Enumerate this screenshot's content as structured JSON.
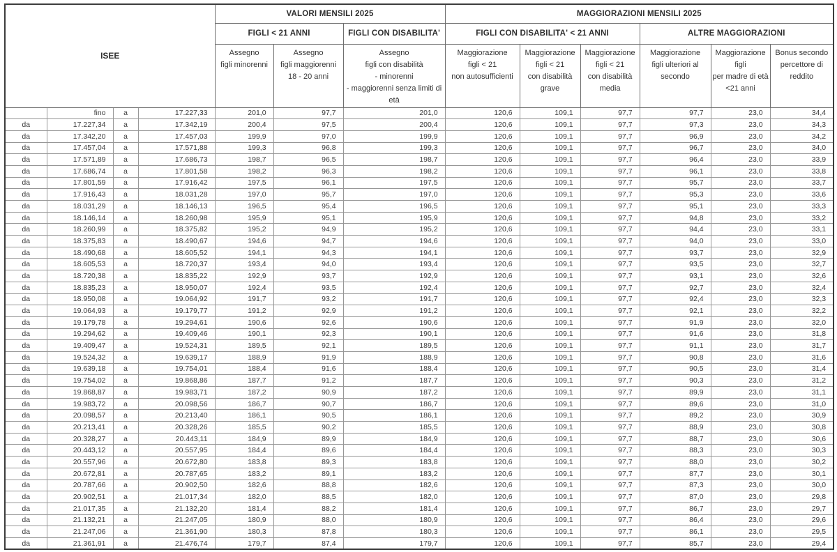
{
  "header": {
    "isee": "ISEE",
    "valori_mensili": "VALORI MENSILI 2025",
    "maggiorazioni_mensili": "MAGGIORAZIONI MENSILI 2025",
    "figli_under_21": "FIGLI < 21 ANNI",
    "figli_con_disabilita": "FIGLI CON DISABILITA'",
    "figli_con_disabilita_under_21": "FIGLI CON DISABILITA' < 21 ANNI",
    "altre_maggiorazioni": "ALTRE MAGGIORAZIONI",
    "columns": [
      "Assegno\nfigli minorenni",
      "Assegno\nfigli  maggiorenni\n18 -  20 anni",
      "Assegno\nfigli con disabilità\n- minorenni\n- maggiorenni senza limiti di\netà",
      "Maggiorazione\nfigli  < 21\nnon autosufficienti",
      "Maggiorazione\nfigli < 21\ncon disabilità\ngrave",
      "Maggiorazione\nfigli < 21\ncon disabilità\nmedia",
      "Maggiorazione\nfigli ulteriori al\nsecondo",
      "Maggiorazione\nfigli\nper madre di età\n<21 anni",
      "Bonus secondo\npercettore di\nreddito"
    ]
  },
  "table": {
    "col_names": [
      "cell-da",
      "cell-isee-from",
      "cell-a",
      "cell-isee-to",
      "cell-assegno-minorenni",
      "cell-assegno-maggiorenni",
      "cell-assegno-disabilita",
      "cell-magg-non-autosufficienti",
      "cell-magg-disabilita-grave",
      "cell-magg-disabilita-media",
      "cell-magg-figli-ulteriori",
      "cell-magg-madre-under21",
      "cell-bonus-secondo-percettore"
    ],
    "col_classes": [
      "c-center",
      "c-num",
      "c-center",
      "c-num",
      "c-num",
      "c-num",
      "c-num",
      "c-num",
      "c-num",
      "c-num",
      "c-num",
      "c-num",
      "c-num"
    ],
    "rows": [
      [
        "",
        "fino",
        "a",
        "17.227,33",
        "201,0",
        "97,7",
        "201,0",
        "120,6",
        "109,1",
        "97,7",
        "97,7",
        "23,0",
        "34,4"
      ],
      [
        "da",
        "17.227,34",
        "a",
        "17.342,19",
        "200,4",
        "97,5",
        "200,4",
        "120,6",
        "109,1",
        "97,7",
        "97,3",
        "23,0",
        "34,3"
      ],
      [
        "da",
        "17.342,20",
        "a",
        "17.457,03",
        "199,9",
        "97,0",
        "199,9",
        "120,6",
        "109,1",
        "97,7",
        "96,9",
        "23,0",
        "34,2"
      ],
      [
        "da",
        "17.457,04",
        "a",
        "17.571,88",
        "199,3",
        "96,8",
        "199,3",
        "120,6",
        "109,1",
        "97,7",
        "96,7",
        "23,0",
        "34,0"
      ],
      [
        "da",
        "17.571,89",
        "a",
        "17.686,73",
        "198,7",
        "96,5",
        "198,7",
        "120,6",
        "109,1",
        "97,7",
        "96,4",
        "23,0",
        "33,9"
      ],
      [
        "da",
        "17.686,74",
        "a",
        "17.801,58",
        "198,2",
        "96,3",
        "198,2",
        "120,6",
        "109,1",
        "97,7",
        "96,1",
        "23,0",
        "33,8"
      ],
      [
        "da",
        "17.801,59",
        "a",
        "17.916,42",
        "197,5",
        "96,1",
        "197,5",
        "120,6",
        "109,1",
        "97,7",
        "95,7",
        "23,0",
        "33,7"
      ],
      [
        "da",
        "17.916,43",
        "a",
        "18.031,28",
        "197,0",
        "95,7",
        "197,0",
        "120,6",
        "109,1",
        "97,7",
        "95,3",
        "23,0",
        "33,6"
      ],
      [
        "da",
        "18.031,29",
        "a",
        "18.146,13",
        "196,5",
        "95,4",
        "196,5",
        "120,6",
        "109,1",
        "97,7",
        "95,1",
        "23,0",
        "33,3"
      ],
      [
        "da",
        "18.146,14",
        "a",
        "18.260,98",
        "195,9",
        "95,1",
        "195,9",
        "120,6",
        "109,1",
        "97,7",
        "94,8",
        "23,0",
        "33,2"
      ],
      [
        "da",
        "18.260,99",
        "a",
        "18.375,82",
        "195,2",
        "94,9",
        "195,2",
        "120,6",
        "109,1",
        "97,7",
        "94,4",
        "23,0",
        "33,1"
      ],
      [
        "da",
        "18.375,83",
        "a",
        "18.490,67",
        "194,6",
        "94,7",
        "194,6",
        "120,6",
        "109,1",
        "97,7",
        "94,0",
        "23,0",
        "33,0"
      ],
      [
        "da",
        "18.490,68",
        "a",
        "18.605,52",
        "194,1",
        "94,3",
        "194,1",
        "120,6",
        "109,1",
        "97,7",
        "93,7",
        "23,0",
        "32,9"
      ],
      [
        "da",
        "18.605,53",
        "a",
        "18.720,37",
        "193,4",
        "94,0",
        "193,4",
        "120,6",
        "109,1",
        "97,7",
        "93,5",
        "23,0",
        "32,7"
      ],
      [
        "da",
        "18.720,38",
        "a",
        "18.835,22",
        "192,9",
        "93,7",
        "192,9",
        "120,6",
        "109,1",
        "97,7",
        "93,1",
        "23,0",
        "32,6"
      ],
      [
        "da",
        "18.835,23",
        "a",
        "18.950,07",
        "192,4",
        "93,5",
        "192,4",
        "120,6",
        "109,1",
        "97,7",
        "92,7",
        "23,0",
        "32,4"
      ],
      [
        "da",
        "18.950,08",
        "a",
        "19.064,92",
        "191,7",
        "93,2",
        "191,7",
        "120,6",
        "109,1",
        "97,7",
        "92,4",
        "23,0",
        "32,3"
      ],
      [
        "da",
        "19.064,93",
        "a",
        "19.179,77",
        "191,2",
        "92,9",
        "191,2",
        "120,6",
        "109,1",
        "97,7",
        "92,1",
        "23,0",
        "32,2"
      ],
      [
        "da",
        "19.179,78",
        "a",
        "19.294,61",
        "190,6",
        "92,6",
        "190,6",
        "120,6",
        "109,1",
        "97,7",
        "91,9",
        "23,0",
        "32,0"
      ],
      [
        "da",
        "19.294,62",
        "a",
        "19.409,46",
        "190,1",
        "92,3",
        "190,1",
        "120,6",
        "109,1",
        "97,7",
        "91,6",
        "23,0",
        "31,8"
      ],
      [
        "da",
        "19.409,47",
        "a",
        "19.524,31",
        "189,5",
        "92,1",
        "189,5",
        "120,6",
        "109,1",
        "97,7",
        "91,1",
        "23,0",
        "31,7"
      ],
      [
        "da",
        "19.524,32",
        "a",
        "19.639,17",
        "188,9",
        "91,9",
        "188,9",
        "120,6",
        "109,1",
        "97,7",
        "90,8",
        "23,0",
        "31,6"
      ],
      [
        "da",
        "19.639,18",
        "a",
        "19.754,01",
        "188,4",
        "91,6",
        "188,4",
        "120,6",
        "109,1",
        "97,7",
        "90,5",
        "23,0",
        "31,4"
      ],
      [
        "da",
        "19.754,02",
        "a",
        "19.868,86",
        "187,7",
        "91,2",
        "187,7",
        "120,6",
        "109,1",
        "97,7",
        "90,3",
        "23,0",
        "31,2"
      ],
      [
        "da",
        "19.868,87",
        "a",
        "19.983,71",
        "187,2",
        "90,9",
        "187,2",
        "120,6",
        "109,1",
        "97,7",
        "89,9",
        "23,0",
        "31,1"
      ],
      [
        "da",
        "19.983,72",
        "a",
        "20.098,56",
        "186,7",
        "90,7",
        "186,7",
        "120,6",
        "109,1",
        "97,7",
        "89,6",
        "23,0",
        "31,0"
      ],
      [
        "da",
        "20.098,57",
        "a",
        "20.213,40",
        "186,1",
        "90,5",
        "186,1",
        "120,6",
        "109,1",
        "97,7",
        "89,2",
        "23,0",
        "30,9"
      ],
      [
        "da",
        "20.213,41",
        "a",
        "20.328,26",
        "185,5",
        "90,2",
        "185,5",
        "120,6",
        "109,1",
        "97,7",
        "88,9",
        "23,0",
        "30,8"
      ],
      [
        "da",
        "20.328,27",
        "a",
        "20.443,11",
        "184,9",
        "89,9",
        "184,9",
        "120,6",
        "109,1",
        "97,7",
        "88,7",
        "23,0",
        "30,6"
      ],
      [
        "da",
        "20.443,12",
        "a",
        "20.557,95",
        "184,4",
        "89,6",
        "184,4",
        "120,6",
        "109,1",
        "97,7",
        "88,3",
        "23,0",
        "30,3"
      ],
      [
        "da",
        "20.557,96",
        "a",
        "20.672,80",
        "183,8",
        "89,3",
        "183,8",
        "120,6",
        "109,1",
        "97,7",
        "88,0",
        "23,0",
        "30,2"
      ],
      [
        "da",
        "20.672,81",
        "a",
        "20.787,65",
        "183,2",
        "89,1",
        "183,2",
        "120,6",
        "109,1",
        "97,7",
        "87,7",
        "23,0",
        "30,1"
      ],
      [
        "da",
        "20.787,66",
        "a",
        "20.902,50",
        "182,6",
        "88,8",
        "182,6",
        "120,6",
        "109,1",
        "97,7",
        "87,3",
        "23,0",
        "30,0"
      ],
      [
        "da",
        "20.902,51",
        "a",
        "21.017,34",
        "182,0",
        "88,5",
        "182,0",
        "120,6",
        "109,1",
        "97,7",
        "87,0",
        "23,0",
        "29,8"
      ],
      [
        "da",
        "21.017,35",
        "a",
        "21.132,20",
        "181,4",
        "88,2",
        "181,4",
        "120,6",
        "109,1",
        "97,7",
        "86,7",
        "23,0",
        "29,7"
      ],
      [
        "da",
        "21.132,21",
        "a",
        "21.247,05",
        "180,9",
        "88,0",
        "180,9",
        "120,6",
        "109,1",
        "97,7",
        "86,4",
        "23,0",
        "29,6"
      ],
      [
        "da",
        "21.247,06",
        "a",
        "21.361,90",
        "180,3",
        "87,8",
        "180,3",
        "120,6",
        "109,1",
        "97,7",
        "86,1",
        "23,0",
        "29,5"
      ],
      [
        "da",
        "21.361,91",
        "a",
        "21.476,74",
        "179,7",
        "87,4",
        "179,7",
        "120,6",
        "109,1",
        "97,7",
        "85,7",
        "23,0",
        "29,4"
      ]
    ]
  },
  "colors": {
    "text": "#3b3b3b",
    "border_inner": "#8b8b8b",
    "border_outer": "#3c3c3c",
    "background": "#ffffff"
  }
}
